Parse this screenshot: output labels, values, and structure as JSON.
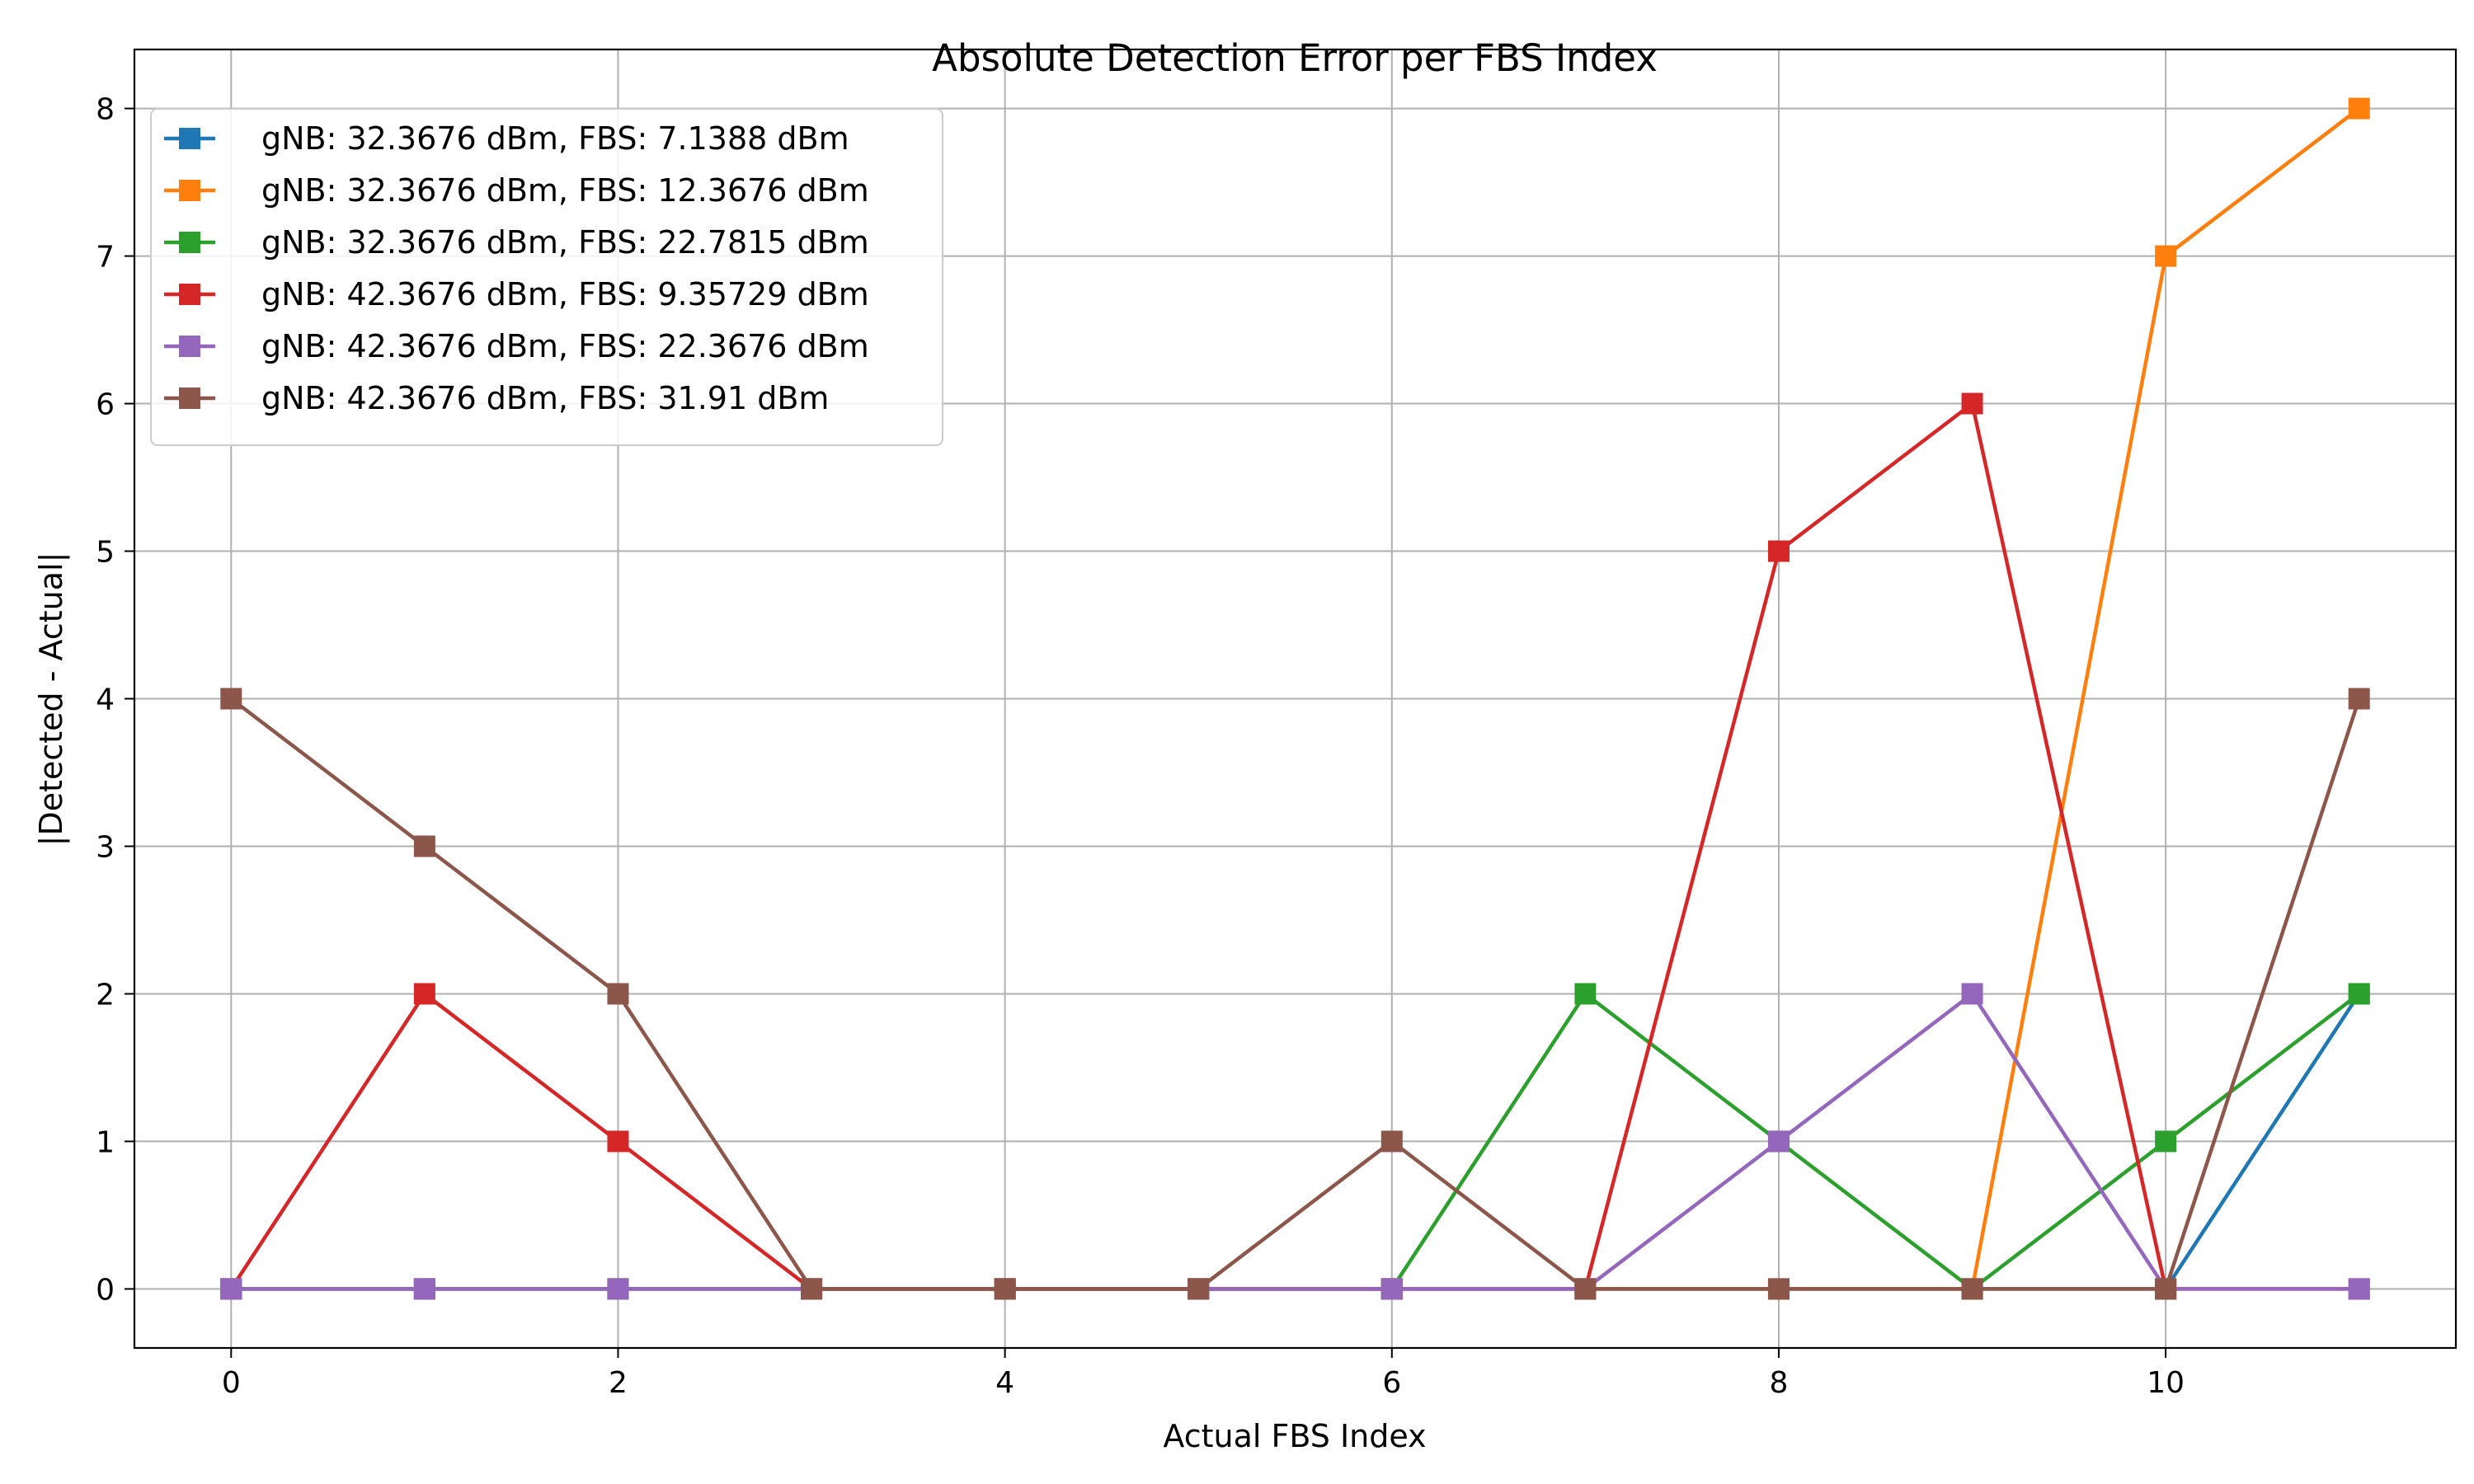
{
  "chart_data": {
    "type": "line",
    "title": "Absolute Detection Error per FBS Index",
    "xlabel": "Actual FBS Index",
    "ylabel": "|Detected - Actual|",
    "xlim": [
      -0.5,
      11.5
    ],
    "ylim": [
      -0.4,
      8.4
    ],
    "xticks": [
      0,
      2,
      4,
      6,
      8,
      10
    ],
    "yticks": [
      0,
      1,
      2,
      3,
      4,
      5,
      6,
      7,
      8
    ],
    "grid": true,
    "legend_position": "top-left",
    "marker": "square",
    "x": [
      0,
      1,
      2,
      3,
      4,
      5,
      6,
      7,
      8,
      9,
      10,
      11
    ],
    "series": [
      {
        "name": "gNB: 32.3676 dBm, FBS: 7.1388 dBm",
        "color": "#1f77b4",
        "values": [
          0,
          0,
          0,
          0,
          0,
          0,
          0,
          0,
          0,
          0,
          0,
          2
        ]
      },
      {
        "name": "gNB: 32.3676 dBm, FBS: 12.3676 dBm",
        "color": "#ff7f0e",
        "values": [
          0,
          0,
          0,
          0,
          0,
          0,
          0,
          0,
          0,
          0,
          7,
          8
        ]
      },
      {
        "name": "gNB: 32.3676 dBm, FBS: 22.7815 dBm",
        "color": "#2ca02c",
        "values": [
          0,
          0,
          0,
          0,
          0,
          0,
          0,
          2,
          1,
          0,
          1,
          2
        ]
      },
      {
        "name": "gNB: 42.3676 dBm, FBS: 9.35729 dBm",
        "color": "#d62728",
        "values": [
          0,
          2,
          1,
          0,
          0,
          0,
          0,
          0,
          5,
          6,
          0,
          0
        ]
      },
      {
        "name": "gNB: 42.3676 dBm, FBS: 22.3676 dBm",
        "color": "#9467bd",
        "values": [
          0,
          0,
          0,
          0,
          0,
          0,
          0,
          0,
          1,
          2,
          0,
          0
        ]
      },
      {
        "name": "gNB: 42.3676 dBm, FBS: 31.91 dBm",
        "color": "#8c564b",
        "values": [
          4,
          3,
          2,
          0,
          0,
          0,
          1,
          0,
          0,
          0,
          0,
          4
        ]
      }
    ]
  }
}
